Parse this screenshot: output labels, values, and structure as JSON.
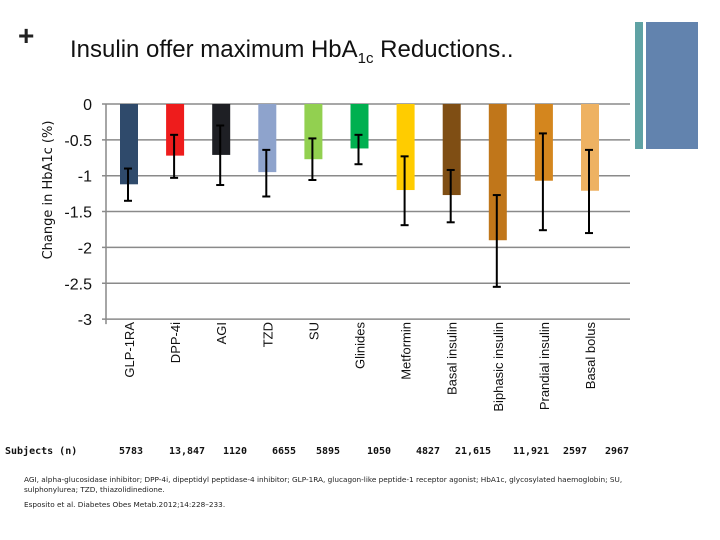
{
  "slide": {
    "plus_symbol": "+",
    "title_main": "Insulin offer maximum HbA",
    "title_sub": "1c",
    "title_end": " Reductions..",
    "subjects_label": "Subjects (n)",
    "subjects": [
      "5783",
      "13,847",
      "1120",
      "6655",
      "5895",
      "1050",
      "4827",
      "21,615",
      "11,921",
      "2597",
      "2967"
    ],
    "footnote": "AGI, alpha-glucosidase inhibitor; DPP-4i, dipeptidyl peptidase-4 inhibitor; GLP-1RA, glucagon-like peptide-1 receptor agonist; HbA1c, glycosylated haemoglobin; SU, sulphonylurea; TZD, thiazolidinedione.",
    "citation": "Esposito et al. Diabetes Obes Metab.2012;14:228–233.",
    "accent_colors": {
      "teal": "#5FA2A4",
      "blue": "#6283AE"
    }
  },
  "chart_data": {
    "type": "bar",
    "title": "",
    "xlabel": "",
    "ylabel": "Change in HbA1c (%)",
    "ylim": [
      -3,
      0
    ],
    "yticks": [
      0,
      -0.5,
      -1,
      -1.5,
      -2,
      -2.5,
      -3
    ],
    "ytick_labels": [
      "0",
      "-0.5",
      "-1",
      "-1.5",
      "-2",
      "-2.5",
      "-3"
    ],
    "grid": true,
    "categories": [
      "GLP-1RA",
      "DPP-4i",
      "AGI",
      "TZD",
      "SU",
      "Glinides",
      "Metformin",
      "Basal insulin",
      "Biphasic insulin",
      "Prandial insulin",
      "Basal bolus"
    ],
    "values": [
      -1.12,
      -0.72,
      -0.71,
      -0.95,
      -0.77,
      -0.62,
      -1.2,
      -1.27,
      -1.9,
      -1.07,
      -1.21
    ],
    "error_upper": [
      -0.9,
      -0.43,
      -0.3,
      -0.64,
      -0.48,
      -0.43,
      -0.73,
      -0.92,
      -1.27,
      -0.41,
      -0.64
    ],
    "error_lower": [
      -1.35,
      -1.03,
      -1.13,
      -1.29,
      -1.06,
      -0.84,
      -1.69,
      -1.65,
      -2.55,
      -1.76,
      -1.8
    ],
    "colors": [
      "#2F4A6B",
      "#EE1C1C",
      "#1E1F24",
      "#8EA3CC",
      "#92D050",
      "#00B050",
      "#FFCC00",
      "#7F4E14",
      "#C0761A",
      "#D4861E",
      "#EEB262"
    ]
  }
}
